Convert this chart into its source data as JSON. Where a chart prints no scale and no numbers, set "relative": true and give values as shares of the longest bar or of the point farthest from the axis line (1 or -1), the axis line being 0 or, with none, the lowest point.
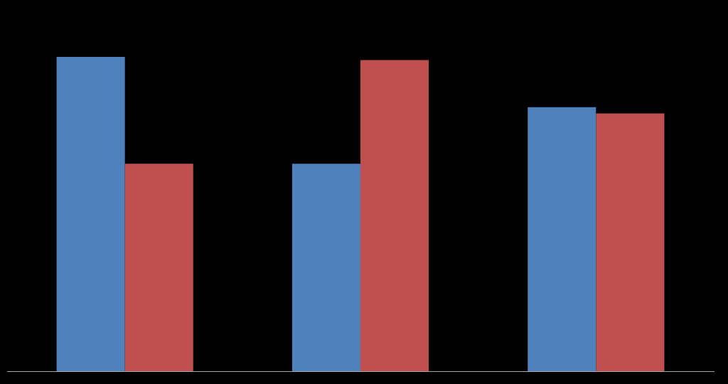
{
  "chart_data": {
    "type": "bar",
    "relative": true,
    "categories": [
      null,
      null,
      null
    ],
    "series": [
      {
        "color": "#4f81bd",
        "values": [
          1,
          0.66,
          0.84
        ]
      },
      {
        "color": "#c0504d",
        "values": [
          0.66,
          0.99,
          0.82
        ]
      }
    ]
  }
}
